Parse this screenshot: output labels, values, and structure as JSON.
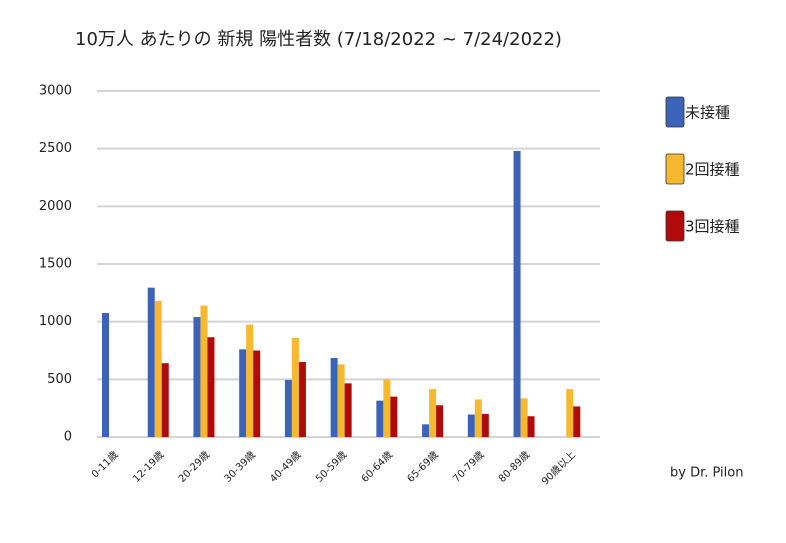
{
  "chart_data": {
    "type": "bar",
    "title": "10万人 あたりの 新規 陽性者数 (7/18/2022 ~ 7/24/2022)",
    "credit": "by Dr. Pilon",
    "categories": [
      "0-11歳",
      "12-19歳",
      "20-29歳",
      "30-39歳",
      "40-49歳",
      "50-59歳",
      "60-64歳",
      "65-69歳",
      "70-79歳",
      "80-89歳",
      "90歳以上"
    ],
    "series": [
      {
        "name": "未接種",
        "color": "#3b63b7",
        "values": [
          1075,
          1295,
          1040,
          760,
          495,
          685,
          315,
          110,
          195,
          2480,
          null
        ]
      },
      {
        "name": "2回接種",
        "color": "#f5b82e",
        "values": [
          null,
          1180,
          1140,
          975,
          860,
          630,
          500,
          415,
          325,
          335,
          415
        ]
      },
      {
        "name": "3回接種",
        "color": "#b00a0a",
        "values": [
          null,
          640,
          865,
          750,
          650,
          465,
          350,
          275,
          200,
          180,
          265
        ]
      }
    ],
    "ylim": [
      0,
      3000
    ],
    "yticks": [
      0,
      500,
      1000,
      1500,
      2000,
      2500,
      3000
    ],
    "grid": true,
    "legend": "right"
  }
}
